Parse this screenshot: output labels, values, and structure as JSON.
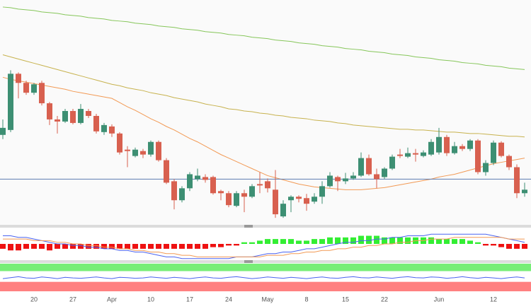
{
  "chart_data": [
    {
      "type": "candlestick",
      "categories": [
        null,
        null,
        null,
        null,
        "20",
        null,
        null,
        null,
        null,
        "27",
        null,
        null,
        null,
        null,
        "Apr",
        null,
        null,
        null,
        null,
        "10",
        null,
        null,
        null,
        null,
        "17",
        null,
        null,
        null,
        null,
        "24",
        null,
        null,
        null,
        null,
        "May",
        null,
        null,
        null,
        null,
        "8",
        null,
        null,
        null,
        null,
        "15",
        null,
        null,
        null,
        null,
        "22",
        null,
        null,
        null,
        null,
        null,
        null,
        "Jun",
        null,
        null,
        null,
        null,
        null,
        null,
        "12",
        null,
        null,
        null,
        null
      ],
      "open": [
        128,
        135,
        215,
        202,
        188,
        202,
        173,
        150,
        147,
        162,
        145,
        162,
        155,
        132,
        140,
        130,
        107,
        98,
        105,
        100,
        118,
        92,
        62,
        35,
        52,
        65,
        68,
        68,
        48,
        45,
        27,
        45,
        40,
        58,
        62,
        50,
        12,
        35,
        40,
        38,
        33,
        40,
        55,
        68,
        62,
        66,
        70,
        95,
        72,
        68,
        80,
        100,
        97,
        102,
        98,
        100,
        103,
        125,
        102,
        112,
        108,
        120,
        75,
        88,
        117,
        98,
        82,
        45
      ],
      "high": [
        150,
        220,
        217,
        205,
        202,
        205,
        175,
        155,
        165,
        165,
        172,
        165,
        158,
        145,
        143,
        132,
        112,
        110,
        108,
        120,
        120,
        95,
        65,
        55,
        75,
        80,
        72,
        70,
        50,
        48,
        48,
        50,
        58,
        75,
        66,
        78,
        35,
        42,
        42,
        44,
        45,
        62,
        75,
        70,
        74,
        75,
        103,
        100,
        80,
        82,
        100,
        108,
        110,
        108,
        106,
        122,
        138,
        128,
        118,
        115,
        122,
        122,
        92,
        120,
        119,
        100,
        86,
        60
      ],
      "low": [
        122,
        132,
        180,
        185,
        185,
        170,
        142,
        130,
        145,
        143,
        143,
        152,
        130,
        128,
        125,
        100,
        82,
        96,
        95,
        97,
        90,
        58,
        22,
        32,
        48,
        62,
        60,
        43,
        35,
        25,
        25,
        18,
        38,
        45,
        46,
        10,
        10,
        18,
        32,
        20,
        30,
        30,
        53,
        48,
        58,
        64,
        68,
        70,
        52,
        65,
        78,
        95,
        95,
        90,
        96,
        98,
        100,
        98,
        100,
        105,
        105,
        72,
        70,
        85,
        96,
        78,
        38,
        40
      ],
      "close": [
        138,
        215,
        202,
        188,
        200,
        173,
        150,
        147,
        162,
        145,
        165,
        155,
        133,
        142,
        130,
        103,
        105,
        107,
        100,
        118,
        92,
        60,
        35,
        52,
        72,
        70,
        64,
        45,
        45,
        28,
        45,
        40,
        55,
        56,
        52,
        15,
        30,
        40,
        37,
        30,
        40,
        55,
        70,
        62,
        66,
        70,
        95,
        72,
        65,
        80,
        97,
        98,
        102,
        100,
        103,
        118,
        125,
        102,
        112,
        108,
        120,
        75,
        88,
        117,
        98,
        82,
        45,
        50
      ],
      "up_color": "#3d8f73",
      "down_color": "#d8604f",
      "ylim": [
        0,
        320
      ],
      "lines": [
        {
          "color": "#86c65a",
          "values": [
            310,
            309,
            307,
            306,
            305,
            303,
            302,
            301,
            299,
            298,
            297,
            295,
            294,
            293,
            291,
            290,
            289,
            287,
            286,
            285,
            283,
            282,
            281,
            279,
            278,
            277,
            275,
            274,
            273,
            271,
            270,
            269,
            267,
            266,
            265,
            263,
            262,
            261,
            259,
            258,
            257,
            255,
            254,
            253,
            251,
            250,
            249,
            247,
            246,
            245,
            243,
            242,
            241,
            239,
            238,
            237,
            235,
            234,
            233,
            231,
            230,
            229,
            227,
            226,
            225,
            223,
            222,
            221
          ]
        },
        {
          "color": "#c7b24e",
          "values": [
            242,
            239,
            236,
            233,
            230,
            227,
            224,
            221,
            218,
            215,
            212,
            209,
            206,
            203,
            200,
            198,
            195,
            193,
            191,
            188,
            186,
            184,
            181,
            179,
            177,
            175,
            172,
            170,
            168,
            165,
            164,
            162,
            161,
            159,
            158,
            156,
            155,
            153,
            152,
            151,
            149,
            148,
            147,
            145,
            144,
            142,
            141,
            140,
            139,
            138,
            137,
            136,
            136,
            135,
            135,
            134,
            133,
            132,
            132,
            131,
            130,
            130,
            129,
            128,
            127,
            126,
            126,
            125
          ]
        },
        {
          "color": "#f29a55",
          "values": [
            210,
            207,
            205,
            203,
            201,
            199,
            197,
            195,
            193,
            190,
            188,
            186,
            184,
            182,
            180,
            174,
            168,
            163,
            157,
            151,
            146,
            140,
            135,
            129,
            123,
            118,
            112,
            106,
            100,
            95,
            90,
            85,
            80,
            75,
            70,
            67,
            64,
            61,
            58,
            56,
            54,
            53,
            52,
            51,
            50,
            50,
            50,
            51,
            52,
            53,
            55,
            57,
            59,
            61,
            63,
            65,
            68,
            70,
            72,
            75,
            78,
            81,
            84,
            87,
            89,
            91,
            93,
            95
          ]
        }
      ],
      "hline": {
        "value": 65,
        "color": "#5b7bb0"
      }
    },
    {
      "type": "macd",
      "ylim": [
        -10,
        10
      ],
      "values": [
        -3,
        -4,
        -4,
        -3,
        -3,
        -3,
        -4,
        -3,
        -3,
        -3,
        -3,
        -3,
        -3,
        -3,
        -3,
        -3,
        -3,
        -3,
        -3,
        -3,
        -3,
        -3,
        -3,
        -3,
        -3,
        -3,
        -3,
        -2,
        -2,
        -1,
        -1,
        1,
        1,
        2,
        3,
        3,
        3,
        3,
        2,
        2,
        3,
        3,
        4,
        4,
        4,
        4,
        5,
        5,
        5,
        4,
        4,
        4,
        4,
        4,
        4,
        4,
        3,
        3,
        3,
        3,
        2,
        1,
        -1,
        -1,
        -2,
        -3,
        -3,
        -3
      ],
      "pos_color": "#33ee33",
      "neg_color": "#ee1111",
      "lines": [
        {
          "color": "#4a63f0",
          "values": [
            5,
            5,
            4,
            4,
            3,
            2,
            1,
            0,
            0,
            -1,
            -1,
            -2,
            -2,
            -3,
            -3,
            -4,
            -4,
            -5,
            -5,
            -6,
            -7,
            -8,
            -8,
            -9,
            -9,
            -9,
            -9,
            -9,
            -9,
            -9,
            -8,
            -8,
            -8,
            -7,
            -6,
            -6,
            -5,
            -5,
            -4,
            -3,
            -3,
            -2,
            -1,
            0,
            1,
            1,
            2,
            2,
            3,
            3,
            4,
            4,
            5,
            5,
            5,
            6,
            6,
            6,
            6,
            6,
            6,
            6,
            6,
            5,
            4,
            3,
            2,
            1
          ]
        },
        {
          "color": "#f29a55",
          "values": [
            3,
            3,
            3,
            3,
            2,
            2,
            2,
            1,
            1,
            0,
            0,
            -1,
            -1,
            -2,
            -2,
            -3,
            -3,
            -4,
            -4,
            -5,
            -5,
            -6,
            -6,
            -7,
            -7,
            -8,
            -8,
            -8,
            -8,
            -8,
            -8,
            -8,
            -8,
            -8,
            -7,
            -7,
            -7,
            -6,
            -6,
            -5,
            -5,
            -4,
            -4,
            -3,
            -3,
            -2,
            -2,
            -1,
            -1,
            0,
            0,
            1,
            1,
            2,
            2,
            3,
            3,
            3,
            4,
            4,
            4,
            4,
            4,
            4,
            4,
            3,
            3,
            3
          ]
        }
      ]
    },
    {
      "type": "oscillator",
      "ylim": [
        0,
        100
      ],
      "bands": [
        {
          "from": 75,
          "to": 98,
          "color": "#77ee77"
        },
        {
          "from": 13,
          "to": 42,
          "color": "#ff8080"
        }
      ],
      "lines": [
        {
          "color": "#4a63f0",
          "values": [
            52,
            55,
            58,
            54,
            53,
            57,
            55,
            52,
            56,
            54,
            53,
            55,
            57,
            54,
            52,
            56,
            55,
            53,
            54,
            57,
            55,
            53,
            56,
            54,
            52,
            55,
            57,
            54,
            53,
            56,
            58,
            55,
            52,
            54,
            57,
            55,
            53,
            56,
            54,
            52,
            55,
            57,
            54,
            53,
            56,
            58,
            55,
            54,
            57,
            55,
            53,
            56,
            58,
            55,
            54,
            57,
            56,
            53,
            55,
            58,
            55,
            53,
            56,
            54,
            52,
            55,
            57,
            54
          ]
        }
      ]
    }
  ]
}
